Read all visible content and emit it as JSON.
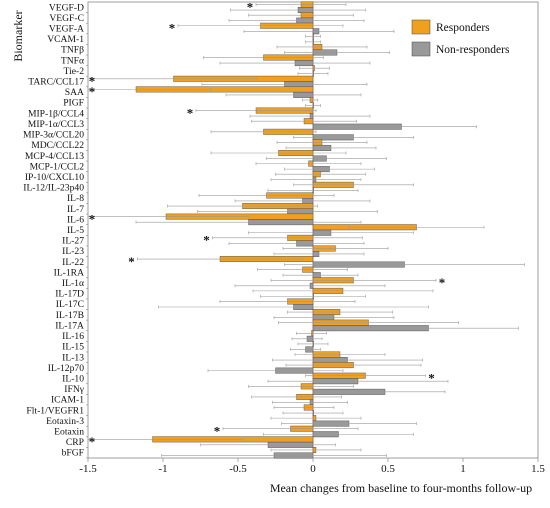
{
  "chart_data": {
    "type": "bar",
    "orientation": "horizontal",
    "xlabel": "Mean changes  from baseline to four-months follow-up",
    "ylabel": "Biomarker",
    "xlim": [
      -1.5,
      1.5
    ],
    "xticks": [
      "-1.5",
      "-1",
      "-0.5",
      "0",
      "0.5",
      "1",
      "1.5"
    ],
    "grid": false,
    "legend_position": "top-right",
    "categories": [
      "VEGF-D",
      "VEGF-C",
      "VEGF-A",
      "VCAM-1",
      "TNFβ",
      "TNFα",
      "Tie-2",
      "TARC/CCL17",
      "SAA",
      "PIGF",
      "MIP-1β/CCL4",
      "MIP-1α/CCL3",
      "MIP-3α/CCL20",
      "MDC/CCL22",
      "MCP-4/CCL13",
      "MCP-1/CCL2",
      "IP-10/CXCL10",
      "IL-12/IL-23p40",
      "IL-8",
      "IL-7",
      "IL-6",
      "IL-5",
      "IL-27",
      "IL-23",
      "IL-22",
      "IL-1RA",
      "IL-1α",
      "IL-17D",
      "IL-17C",
      "IL-17B",
      "IL-17A",
      "IL-16",
      "IL-15",
      "IL-13",
      "IL-12p70",
      "IL-10",
      "IFNγ",
      "ICAM-1",
      "Flt-1/VEGFR1",
      "Eotaxin-3",
      "Eotaxin",
      "CRP",
      "bFGF"
    ],
    "series": [
      {
        "name": "Responders",
        "color": "#F0A01E",
        "values": [
          -0.08,
          -0.08,
          -0.35,
          0.0,
          0.06,
          -0.33,
          0.01,
          -0.93,
          -1.18,
          -0.02,
          -0.38,
          -0.06,
          -0.33,
          0.06,
          -0.23,
          -0.03,
          0.05,
          0.27,
          -0.31,
          -0.47,
          -0.98,
          0.69,
          -0.17,
          0.15,
          -0.62,
          -0.07,
          0.27,
          0.2,
          -0.17,
          0.18,
          0.37,
          -0.01,
          0.0,
          0.18,
          0.27,
          0.35,
          -0.08,
          -0.11,
          -0.06,
          0.02,
          -0.15,
          -1.07,
          0.02
        ],
        "errors": [
          0.3,
          0.35,
          0.55,
          0.05,
          0.3,
          0.4,
          0.1,
          0.55,
          0.5,
          0.05,
          0.4,
          0.35,
          0.35,
          0.3,
          0.45,
          0.35,
          0.3,
          0.4,
          0.45,
          0.5,
          0.55,
          0.45,
          0.5,
          0.35,
          0.55,
          0.3,
          0.55,
          0.6,
          0.45,
          0.35,
          0.6,
          0.1,
          0.1,
          0.3,
          0.45,
          0.4,
          0.35,
          0.3,
          0.2,
          0.3,
          0.45,
          0.6,
          0.3
        ]
      },
      {
        "name": "Non-responders",
        "color": "#999999",
        "values": [
          -0.1,
          -0.11,
          0.04,
          0.0,
          0.16,
          -0.12,
          0.0,
          -0.19,
          -0.13,
          0.0,
          -0.02,
          0.59,
          0.27,
          0.12,
          0.09,
          0.11,
          0.02,
          0.0,
          -0.07,
          -0.17,
          -0.43,
          0.12,
          -0.11,
          0.04,
          0.61,
          0.05,
          -0.02,
          0.0,
          -0.13,
          0.14,
          0.77,
          -0.04,
          -0.05,
          0.23,
          -0.25,
          0.3,
          0.48,
          -0.02,
          0.0,
          0.24,
          0.17,
          -0.3,
          -0.26
        ],
        "errors": [
          0.45,
          0.45,
          0.5,
          0.05,
          0.35,
          0.5,
          0.1,
          0.55,
          0.45,
          0.05,
          0.4,
          0.5,
          0.4,
          0.3,
          0.4,
          0.3,
          0.3,
          0.3,
          0.45,
          0.6,
          0.75,
          0.55,
          0.45,
          0.3,
          0.8,
          0.25,
          0.5,
          0.35,
          0.9,
          0.4,
          0.6,
          0.1,
          0.1,
          0.5,
          0.45,
          0.6,
          0.4,
          0.25,
          0.2,
          0.45,
          0.5,
          0.45,
          0.75
        ]
      }
    ],
    "significance_marker": "*",
    "significant_categories": [
      "VEGF-D",
      "VEGF-A",
      "TARC/CCL17",
      "SAA",
      "MIP-1β/CCL4",
      "IL-6",
      "IL-27",
      "IL-22",
      "IL-1α",
      "IL-10",
      "Eotaxin",
      "CRP"
    ]
  }
}
